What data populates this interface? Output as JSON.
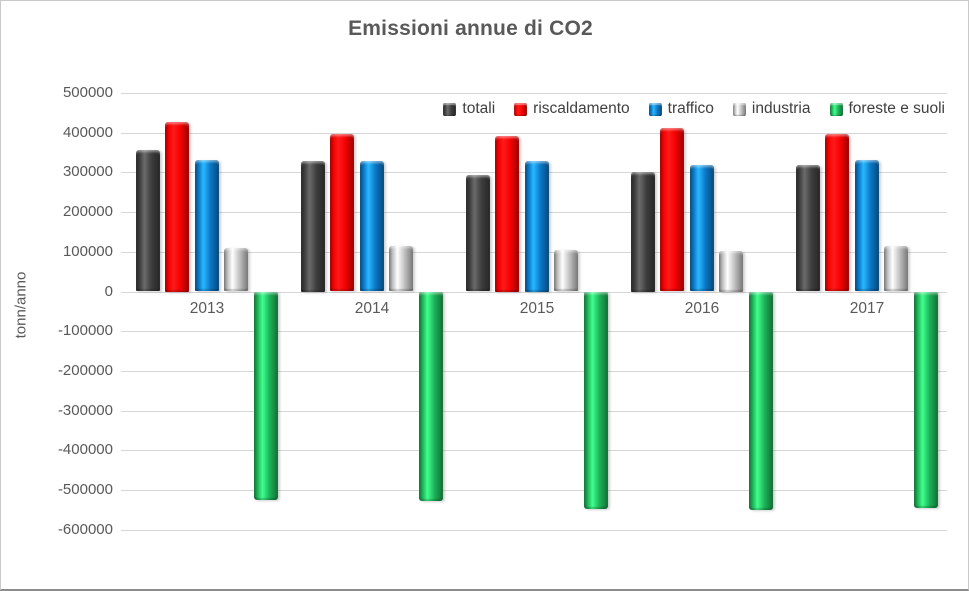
{
  "chart_data": {
    "type": "bar",
    "title": "Emissioni annue di CO2",
    "xlabel": "",
    "ylabel": "tonn/anno",
    "categories": [
      "2013",
      "2014",
      "2015",
      "2016",
      "2017"
    ],
    "series": [
      {
        "name": "totali",
        "color": "#3d3d3d",
        "values": [
          356000,
          330000,
          294000,
          301000,
          318000
        ]
      },
      {
        "name": "riscaldamento",
        "color": "#f40101",
        "values": [
          427000,
          396000,
          393000,
          411000,
          396000
        ]
      },
      {
        "name": "traffico",
        "color": "#0b76c4",
        "values": [
          331000,
          329000,
          330000,
          319000,
          332000
        ]
      },
      {
        "name": "industria",
        "color": "#c0c0c0",
        "values": [
          110000,
          114000,
          104000,
          102000,
          115000
        ]
      },
      {
        "name": "foreste e suoli",
        "color": "#1db157",
        "values": [
          -526000,
          -528000,
          -547000,
          -549000,
          -546000
        ]
      }
    ],
    "ylim": [
      -600000,
      500000
    ],
    "yticks": [
      500000,
      400000,
      300000,
      200000,
      100000,
      0,
      -100000,
      -200000,
      -300000,
      -400000,
      -500000,
      -600000
    ],
    "grid": true,
    "legend_position": "top-right-inside",
    "colors": {
      "title_text": "#595959",
      "axis_text": "#595959",
      "legend_text": "#404040",
      "gridline": "#d6d6d6",
      "background": "#ffffff"
    }
  }
}
